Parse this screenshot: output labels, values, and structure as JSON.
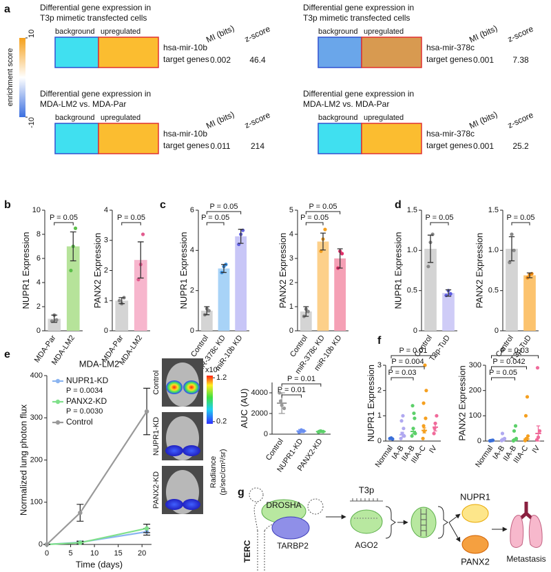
{
  "panel_labels": [
    "a",
    "b",
    "c",
    "d",
    "e",
    "f",
    "g"
  ],
  "enrichment": {
    "colorbar": {
      "label": "enrichment score",
      "ticks": [
        -10,
        10
      ],
      "colors": [
        "#3b6fe0",
        "#ffffff",
        "#f5a01a"
      ]
    },
    "column_labels": [
      "background",
      "upregulated"
    ],
    "headers": [
      "MI (bits)",
      "z-score"
    ],
    "blocks": [
      {
        "title": [
          "Differential gene expression in",
          "T3p mimetic transfected cells"
        ],
        "target": [
          "hsa-mir-10b",
          "target genes"
        ],
        "mi": 0.002,
        "z": 46.4,
        "colors": [
          "#40e0f0",
          "#fbbd30"
        ]
      },
      {
        "title": [
          "Differential gene expression in",
          "T3p mimetic transfected cells"
        ],
        "target": [
          "hsa-mir-378c",
          "target genes"
        ],
        "mi": 0.001,
        "z": 7.38,
        "colors": [
          "#6aa6ea",
          "#d89a50"
        ]
      },
      {
        "title": [
          "Differential gene expression in",
          "MDA-LM2 vs. MDA-Par"
        ],
        "target": [
          "hsa-mir-10b",
          "target genes"
        ],
        "mi": 0.011,
        "z": 214,
        "colors": [
          "#40e0f0",
          "#fbbd30"
        ]
      },
      {
        "title": [
          "Differential gene expression in",
          "MDA-LM2 vs. MDA-Par"
        ],
        "target": [
          "hsa-mir-378c",
          "target genes"
        ],
        "mi": 0.001,
        "z": 25.2,
        "colors": [
          "#40e0f0",
          "#fbbd30"
        ]
      }
    ]
  },
  "chart_data": [
    {
      "type": "bar",
      "ylabel": "NUPR1 Expression",
      "categories": [
        "MDA-Par",
        "MDA-LM2"
      ],
      "values": [
        1,
        7
      ],
      "errors": [
        0.3,
        1.2
      ],
      "points": [
        [
          0.8,
          1.3,
          0.9
        ],
        [
          5,
          7,
          8.5
        ]
      ],
      "colors": [
        "#d4d4d4",
        "#b6e39a"
      ],
      "point_colors": [
        "#888888",
        "#5cbf4a"
      ],
      "ylim": [
        0,
        10
      ],
      "yticks": [
        0,
        2,
        4,
        6,
        8,
        10
      ],
      "annotations": [
        "P = 0.05"
      ]
    },
    {
      "type": "bar",
      "ylabel": "PANX2 Expression",
      "categories": [
        "MDA-Par",
        "MDA-LM2"
      ],
      "values": [
        1,
        2.35
      ],
      "errors": [
        0.1,
        0.6
      ],
      "points": [
        [
          1,
          0.9,
          1.1
        ],
        [
          1.7,
          2.2,
          3.2
        ]
      ],
      "colors": [
        "#d4d4d4",
        "#f7b6cd"
      ],
      "point_colors": [
        "#888888",
        "#e25c8f"
      ],
      "ylim": [
        0,
        4
      ],
      "yticks": [
        0,
        1,
        2,
        3,
        4
      ],
      "annotations": [
        "P = 0.05"
      ]
    },
    {
      "type": "bar",
      "ylabel": "NUPR1 Expression",
      "categories": [
        "Control",
        "miR-378c KD",
        "miR-10b KD"
      ],
      "values": [
        1,
        3.1,
        4.7
      ],
      "errors": [
        0.2,
        0.2,
        0.35
      ],
      "points": [
        [
          0.8,
          1.1,
          1.0
        ],
        [
          2.9,
          3.2,
          3.3
        ],
        [
          4.3,
          4.8,
          5.0
        ]
      ],
      "colors": [
        "#d4d4d4",
        "#a8d3f7",
        "#c8c6f7"
      ],
      "point_colors": [
        "#888888",
        "#3a8fe0",
        "#6060e0"
      ],
      "ylim": [
        0,
        6
      ],
      "yticks": [
        0,
        2,
        4,
        6
      ],
      "annotations": [
        "P = 0.05",
        "P = 0.05"
      ]
    },
    {
      "type": "bar",
      "ylabel": "PANX2 Expression",
      "categories": [
        "Control",
        "miR-378c KD",
        "miR-10b KD"
      ],
      "values": [
        0.8,
        3.7,
        3.0
      ],
      "errors": [
        0.2,
        0.35,
        0.4
      ],
      "points": [
        [
          0.6,
          0.9,
          0.8
        ],
        [
          3.3,
          3.8,
          4.2
        ],
        [
          2.6,
          3.3,
          3.2
        ]
      ],
      "colors": [
        "#d4d4d4",
        "#fdd08a",
        "#f5a0b5"
      ],
      "point_colors": [
        "#888888",
        "#f5a020",
        "#e0306a"
      ],
      "ylim": [
        0,
        5
      ],
      "yticks": [
        0,
        1,
        2,
        3,
        4,
        5
      ],
      "annotations": [
        "P = 0.05",
        "P = 0.05"
      ]
    },
    {
      "type": "bar",
      "ylabel": "NUPR1 Expression",
      "categories": [
        "Control",
        "T3p-TuD"
      ],
      "values": [
        1.02,
        0.47
      ],
      "errors": [
        0.17,
        0.04
      ],
      "points": [
        [
          0.8,
          1.1,
          1.2
        ],
        [
          0.44,
          0.5,
          0.46
        ]
      ],
      "colors": [
        "#d4d4d4",
        "#cfccf7"
      ],
      "point_colors": [
        "#888888",
        "#5c5ce0"
      ],
      "ylim": [
        0,
        1.5
      ],
      "yticks": [
        0,
        0.5,
        {
          "value": 1,
          "label": "1.0"
        },
        1.5
      ],
      "annotations": [
        "P = 0.05"
      ]
    },
    {
      "type": "bar",
      "ylabel": "PANX2 Expression",
      "categories": [
        "Control",
        "T3p-TuD"
      ],
      "values": [
        1.02,
        0.69
      ],
      "errors": [
        0.15,
        0.03
      ],
      "points": [
        [
          0.85,
          1.2,
          1.0
        ],
        [
          0.66,
          0.7,
          0.71
        ]
      ],
      "colors": [
        "#d4d4d4",
        "#fcc36e"
      ],
      "point_colors": [
        "#888888",
        "#f08a10"
      ],
      "ylim": [
        0,
        1.5
      ],
      "yticks": [
        0,
        0.5,
        {
          "value": 1,
          "label": "1.0"
        },
        1.5
      ],
      "annotations": [
        "P = 0.05"
      ]
    },
    {
      "type": "line",
      "title": "MDA-LM2",
      "xlabel": "Time (days)",
      "ylabel": "Normalized lung photon flux",
      "x": [
        0,
        7,
        21
      ],
      "xlim": [
        0,
        22
      ],
      "xticks": [
        0,
        5,
        10,
        15,
        20
      ],
      "ylim": [
        0,
        400
      ],
      "yticks": [
        0,
        100,
        200,
        300,
        400
      ],
      "series": [
        {
          "name": "NUPR1-KD",
          "p": "P = 0.0034",
          "color": "#8ab4f0",
          "values": [
            0,
            5,
            30
          ],
          "errors": [
            0,
            3,
            8
          ]
        },
        {
          "name": "PANX2-KD",
          "p": "P = 0.0030",
          "color": "#7fe08a",
          "values": [
            0,
            4,
            38
          ],
          "errors": [
            0,
            3,
            10
          ]
        },
        {
          "name": "Control",
          "color": "#999999",
          "values": [
            0,
            75,
            315
          ],
          "errors": [
            0,
            20,
            55
          ]
        }
      ]
    },
    {
      "type": "dot",
      "ylabel": "AUC (AU)",
      "categories": [
        "Control",
        "NUPR1-KD",
        "PANX2-KD"
      ],
      "values": [
        3000,
        300,
        250
      ],
      "errors": [
        1000,
        150,
        100
      ],
      "points": [
        [
          4000,
          2800,
          2500,
          3200
        ],
        [
          200,
          400,
          300,
          250
        ],
        [
          200,
          300,
          250,
          280
        ]
      ],
      "colors": [
        "#999999",
        "#6a8ff0",
        "#5cd06a"
      ],
      "point_colors": [
        "#999999",
        "#6a8ff0",
        "#5cd06a"
      ],
      "ylim": [
        0,
        5000
      ],
      "yticks": [
        0,
        2000,
        4000
      ],
      "annotations": [
        "P = 0.01",
        "P = 0.01"
      ]
    },
    {
      "type": "dot",
      "ylabel": "NUPR1 Expression",
      "categories": [
        "Normal",
        "IA-B",
        "IIA-B",
        "IIIA-C",
        "IV"
      ],
      "values": [
        0.1,
        0.25,
        0.38,
        0.42,
        0.55
      ],
      "errors": [
        0.02,
        0.1,
        0.1,
        0.1,
        0.15
      ],
      "points": [
        [
          0.1,
          0.12,
          0.08
        ],
        [
          0.1,
          0.3,
          0.5,
          0.8,
          1.0,
          0.2
        ],
        [
          0.2,
          0.5,
          0.9,
          1.4,
          1.1,
          0.3
        ],
        [
          0.1,
          0.4,
          0.9,
          1.5,
          3.0,
          2.0,
          0.6
        ],
        [
          0.3,
          0.7,
          1.0,
          0.5
        ]
      ],
      "colors": [
        "#3a6fd8",
        "#b0a8f0",
        "#5cd06a",
        "#f5a020",
        "#f06a9a"
      ],
      "point_colors": [
        "#3a6fd8",
        "#b0a8f0",
        "#5cd06a",
        "#f5a020",
        "#f06a9a"
      ],
      "ylim": [
        0,
        3
      ],
      "yticks": [
        0,
        1,
        2,
        3
      ],
      "annotations": [
        "P = 0.03",
        "P = 0.004",
        "P = 0.01"
      ]
    },
    {
      "type": "dot",
      "ylabel": "PANX2 Expression",
      "categories": [
        "Normal",
        "IA-B",
        "IIA-B",
        "IIIA-C",
        "IV"
      ],
      "values": [
        2,
        6,
        5,
        8,
        30
      ],
      "errors": [
        1,
        5,
        4,
        5,
        30
      ],
      "points": [
        [
          1,
          2,
          3
        ],
        [
          2,
          5,
          10,
          30
        ],
        [
          1,
          5,
          10,
          40,
          60
        ],
        [
          2,
          10,
          20,
          100,
          175
        ],
        [
          5,
          15,
          40,
          290
        ]
      ],
      "colors": [
        "#3a6fd8",
        "#b0a8f0",
        "#5cd06a",
        "#f5a020",
        "#f06a9a"
      ],
      "point_colors": [
        "#3a6fd8",
        "#b0a8f0",
        "#5cd06a",
        "#f5a020",
        "#f06a9a"
      ],
      "ylim": [
        0,
        300
      ],
      "yticks": [
        0,
        100,
        200,
        300
      ],
      "annotations": [
        "P = 0.05",
        "P = 0.042",
        "P = 0.03"
      ]
    }
  ],
  "imaging": {
    "labels": [
      "Control",
      "NUPR1-KD",
      "PANX2-KD"
    ],
    "colorbar": {
      "title": "x10⁷",
      "ticks": [
        1.2,
        0.2
      ],
      "lim": [
        0.15,
        1.25
      ],
      "label": [
        "Radiance",
        "(p/sec/cm²/sr)"
      ]
    }
  },
  "diagram": {
    "labels": {
      "drosha": "DROSHA",
      "terc": "TERC",
      "tarbp2": "TARBP2",
      "t3p": "T3p",
      "ago2": "AGO2",
      "nupr1": "NUPR1",
      "panx2": "PANX2",
      "metastasis": "Metastasis"
    }
  }
}
